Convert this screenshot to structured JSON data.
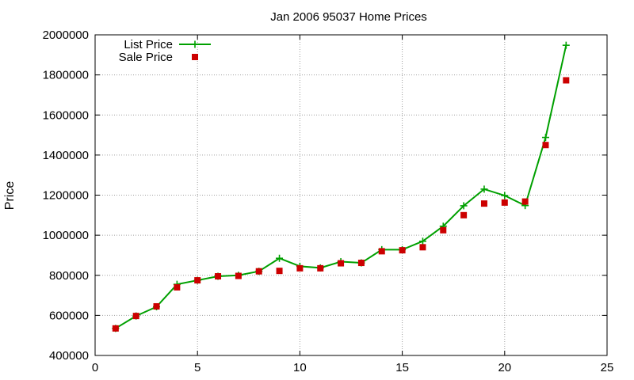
{
  "chart_data": {
    "type": "line",
    "title": "Jan 2006 95037 Home Prices",
    "xlabel": "",
    "ylabel": "Price",
    "xlim": [
      0,
      25
    ],
    "ylim": [
      400000,
      2000000
    ],
    "x_ticks": [
      "0",
      "5",
      "10",
      "15",
      "20",
      "25"
    ],
    "y_ticks": [
      "400000",
      "600000",
      "800000",
      "1000000",
      "1200000",
      "1400000",
      "1600000",
      "1800000",
      "2000000"
    ],
    "grid": true,
    "legend_position": "top-left",
    "series": [
      {
        "name": "List Price",
        "style": "linespoints",
        "color": "#00a000",
        "points": [
          {
            "x": 1,
            "y": 535000
          },
          {
            "x": 2,
            "y": 597000
          },
          {
            "x": 3,
            "y": 643000
          },
          {
            "x": 4,
            "y": 755000
          },
          {
            "x": 5,
            "y": 775000
          },
          {
            "x": 6,
            "y": 795000
          },
          {
            "x": 7,
            "y": 800000
          },
          {
            "x": 8,
            "y": 820000
          },
          {
            "x": 9,
            "y": 885000
          },
          {
            "x": 10,
            "y": 845000
          },
          {
            "x": 11,
            "y": 837000
          },
          {
            "x": 12,
            "y": 868000
          },
          {
            "x": 13,
            "y": 862000
          },
          {
            "x": 14,
            "y": 928000
          },
          {
            "x": 15,
            "y": 928000
          },
          {
            "x": 16,
            "y": 970000
          },
          {
            "x": 17,
            "y": 1045000
          },
          {
            "x": 18,
            "y": 1147000
          },
          {
            "x": 19,
            "y": 1230000
          },
          {
            "x": 20,
            "y": 1198000
          },
          {
            "x": 21,
            "y": 1148000
          },
          {
            "x": 22,
            "y": 1488000
          },
          {
            "x": 23,
            "y": 1948000
          }
        ]
      },
      {
        "name": "Sale Price",
        "style": "points",
        "color": "#cc0000",
        "points": [
          {
            "x": 1,
            "y": 535000
          },
          {
            "x": 2,
            "y": 597000
          },
          {
            "x": 3,
            "y": 645000
          },
          {
            "x": 4,
            "y": 740000
          },
          {
            "x": 5,
            "y": 775000
          },
          {
            "x": 6,
            "y": 795000
          },
          {
            "x": 7,
            "y": 797000
          },
          {
            "x": 8,
            "y": 820000
          },
          {
            "x": 9,
            "y": 822000
          },
          {
            "x": 10,
            "y": 835000
          },
          {
            "x": 11,
            "y": 835000
          },
          {
            "x": 12,
            "y": 860000
          },
          {
            "x": 13,
            "y": 862000
          },
          {
            "x": 14,
            "y": 920000
          },
          {
            "x": 15,
            "y": 925000
          },
          {
            "x": 16,
            "y": 940000
          },
          {
            "x": 17,
            "y": 1025000
          },
          {
            "x": 18,
            "y": 1100000
          },
          {
            "x": 19,
            "y": 1158000
          },
          {
            "x": 20,
            "y": 1163000
          },
          {
            "x": 21,
            "y": 1168000
          },
          {
            "x": 22,
            "y": 1450000
          },
          {
            "x": 23,
            "y": 1773000
          }
        ]
      }
    ]
  }
}
